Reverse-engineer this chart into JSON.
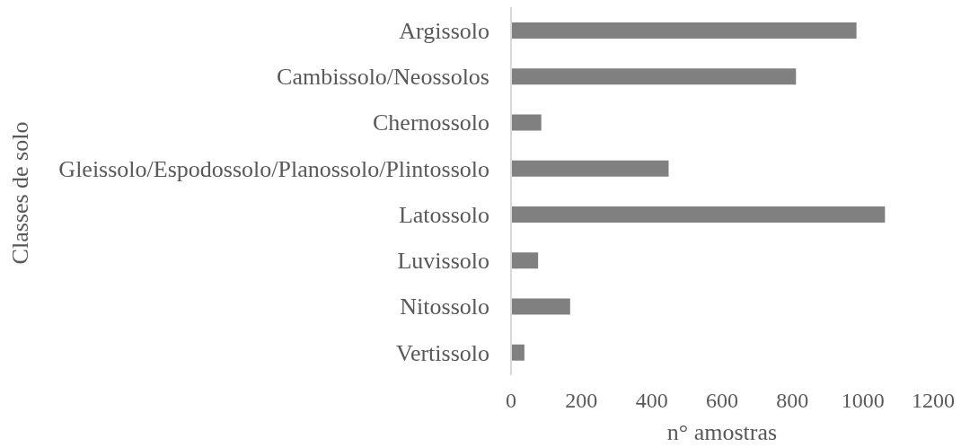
{
  "chart_data": {
    "type": "bar",
    "orientation": "horizontal",
    "categories": [
      "Argissolo",
      "Cambissolo/Neossolos",
      "Chernossolo",
      "Gleissolo/Espodossolo/Planossolo/Plintossolo",
      "Latossolo",
      "Luvissolo",
      "Nitossolo",
      "Vertissolo"
    ],
    "values": [
      982,
      810,
      86,
      448,
      1063,
      77,
      168,
      38
    ],
    "color": "#808080",
    "xlabel": "n° amostras",
    "ylabel": "Classes de solo",
    "xlim": [
      0,
      1200
    ],
    "xticks": [
      0,
      200,
      400,
      600,
      800,
      1000,
      1200
    ]
  }
}
